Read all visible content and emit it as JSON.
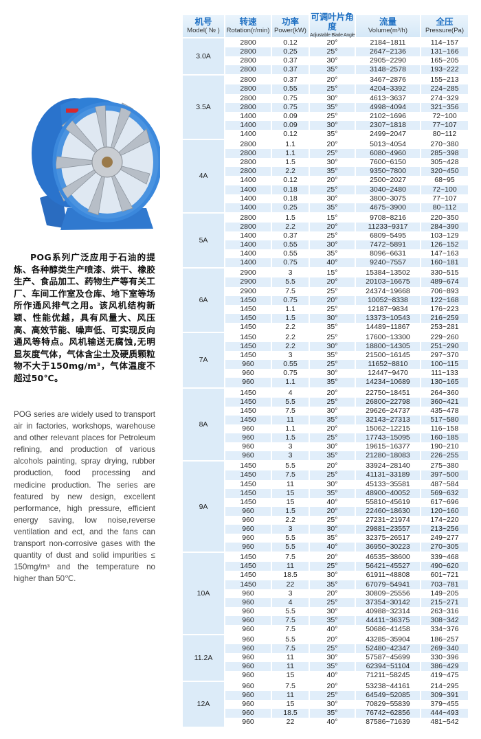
{
  "description_cn": {
    "text": "POG系列广泛应用于石油的提炼、各种醇类生产喷漆、烘干、橡胶生产、食品加工、药物生产等有关工厂、车间工作室及仓库、地下室等场所作通风排气之用。该风机结构新颖、性能优越，具有风量大、风压高、高效节能、噪声低、可实现反向通风等特点。风机输送无腐蚀,无明显灰度气体，气体含尘土及硬质颗粒物不大于150mg/m³，气体温度不超过50℃。"
  },
  "description_en": {
    "text": "POG series are widely used to transport air in factories, workshops, warehouse and other relevant places for Petroleum refining, and production of various alcohols painting, spray drying, rubber production, food processing and medicine production. The series are featured by new design, excellent performance, high pressure, efficient energy saving, low noise,reverse ventilation and ect, and the fans can transport non-corrosive gases with the quantity of dust and solid impurities ≤ 150mg/m³ and the temperature no higher than 50℃."
  },
  "product_image": {
    "icon": "axial-fan-photo",
    "colors": {
      "housing": "#2f7fd6",
      "blades": "#b9c0c8"
    }
  },
  "table": {
    "headers": [
      {
        "zh": "机号",
        "en": "Model( № )"
      },
      {
        "zh": "转速",
        "en": "Rotation(r/min)"
      },
      {
        "zh": "功率",
        "en": "Power(kW)"
      },
      {
        "zh": "可调叶片角度",
        "en": "Adjustable Blade Angle"
      },
      {
        "zh": "流量",
        "en": "Volume(m³/h)"
      },
      {
        "zh": "全压",
        "en": "Pressure(Pa)"
      }
    ],
    "colors": {
      "header_text": "#1e6fc2",
      "row_alt": "#e1eefa",
      "model_bg": "#dcebf8"
    },
    "groups": [
      {
        "model": "3.0A",
        "rows": [
          [
            "2800",
            "0.12",
            "20°",
            "2184~1811",
            "114~157"
          ],
          [
            "2800",
            "0.25",
            "25°",
            "2647~2136",
            "131~166"
          ],
          [
            "2800",
            "0.37",
            "30°",
            "2905~2290",
            "165~205"
          ],
          [
            "2800",
            "0.37",
            "35°",
            "3148~2578",
            "193~222"
          ]
        ]
      },
      {
        "model": "3.5A",
        "rows": [
          [
            "2800",
            "0.37",
            "20°",
            "3467~2876",
            "155~213"
          ],
          [
            "2800",
            "0.55",
            "25°",
            "4204~3392",
            "224~285"
          ],
          [
            "2800",
            "0.75",
            "30°",
            "4613~3637",
            "274~329"
          ],
          [
            "2800",
            "0.75",
            "35°",
            "4998~4094",
            "321~356"
          ],
          [
            "1400",
            "0.09",
            "25°",
            "2102~1696",
            "72~100"
          ],
          [
            "1400",
            "0.09",
            "30°",
            "2307~1818",
            "77~107"
          ],
          [
            "1400",
            "0.12",
            "35°",
            "2499~2047",
            "80~112"
          ]
        ]
      },
      {
        "model": "4A",
        "rows": [
          [
            "2800",
            "1.1",
            "20°",
            "5013~4054",
            "270~380"
          ],
          [
            "2800",
            "1.1",
            "25°",
            "6080~4960",
            "285~398"
          ],
          [
            "2800",
            "1.5",
            "30°",
            "7600~6150",
            "305~428"
          ],
          [
            "2800",
            "2.2",
            "35°",
            "9350~7800",
            "320~450"
          ],
          [
            "1400",
            "0.12",
            "20°",
            "2500~2027",
            "68~95"
          ],
          [
            "1400",
            "0.18",
            "25°",
            "3040~2480",
            "72~100"
          ],
          [
            "1400",
            "0.18",
            "30°",
            "3800~3075",
            "77~107"
          ],
          [
            "1400",
            "0.25",
            "35°",
            "4675~3900",
            "80~112"
          ]
        ]
      },
      {
        "model": "5A",
        "rows": [
          [
            "2800",
            "1.5",
            "15°",
            "9708~8216",
            "220~350"
          ],
          [
            "2800",
            "2.2",
            "20°",
            "11233~9317",
            "284~390"
          ],
          [
            "1400",
            "0.37",
            "25°",
            "6809~5495",
            "103~129"
          ],
          [
            "1400",
            "0.55",
            "30°",
            "7472~5891",
            "126~152"
          ],
          [
            "1400",
            "0.55",
            "35°",
            "8096~6631",
            "147~163"
          ],
          [
            "1400",
            "0.75",
            "40°",
            "9240~7557",
            "160~181"
          ]
        ]
      },
      {
        "model": "6A",
        "rows": [
          [
            "2900",
            "3",
            "15°",
            "15384~13502",
            "330~515"
          ],
          [
            "2900",
            "5.5",
            "20°",
            "20103~16675",
            "489~674"
          ],
          [
            "2900",
            "7.5",
            "25°",
            "24374~19668",
            "706~893"
          ],
          [
            "1450",
            "0.75",
            "20°",
            "10052~8338",
            "122~168"
          ],
          [
            "1450",
            "1.1",
            "25°",
            "12187~9834",
            "176~223"
          ],
          [
            "1450",
            "1.5",
            "30°",
            "13373~10543",
            "216~259"
          ],
          [
            "1450",
            "2.2",
            "35°",
            "14489~11867",
            "253~281"
          ]
        ]
      },
      {
        "model": "7A",
        "rows": [
          [
            "1450",
            "2.2",
            "25°",
            "17600~13300",
            "229~260"
          ],
          [
            "1450",
            "2.2",
            "30°",
            "18800~14305",
            "251~290"
          ],
          [
            "1450",
            "3",
            "35°",
            "21500~16145",
            "297~370"
          ],
          [
            "960",
            "0.55",
            "25°",
            "11652~8810",
            "100~115"
          ],
          [
            "960",
            "0.75",
            "30°",
            "12447~9470",
            "111~133"
          ],
          [
            "960",
            "1.1",
            "35°",
            "14234~10689",
            "130~165"
          ]
        ]
      },
      {
        "model": "8A",
        "rows": [
          [
            "1450",
            "4",
            "20°",
            "22750~18451",
            "264~360"
          ],
          [
            "1450",
            "5.5",
            "25°",
            "26800~22798",
            "360~421"
          ],
          [
            "1450",
            "7.5",
            "30°",
            "29626~24737",
            "435~478"
          ],
          [
            "1450",
            "11",
            "35°",
            "32143~27313",
            "517~580"
          ],
          [
            "960",
            "1.1",
            "20°",
            "15062~12215",
            "116~158"
          ],
          [
            "960",
            "1.5",
            "25°",
            "17743~15095",
            "160~185"
          ],
          [
            "960",
            "3",
            "30°",
            "19615~16377",
            "190~210"
          ],
          [
            "960",
            "3",
            "35°",
            "21280~18083",
            "226~255"
          ]
        ]
      },
      {
        "model": "9A",
        "rows": [
          [
            "1450",
            "5.5",
            "20°",
            "33924~28140",
            "275~380"
          ],
          [
            "1450",
            "7.5",
            "25°",
            "41131~33189",
            "397~500"
          ],
          [
            "1450",
            "11",
            "30°",
            "45133~35581",
            "487~584"
          ],
          [
            "1450",
            "15",
            "35°",
            "48900~40052",
            "569~632"
          ],
          [
            "1450",
            "15",
            "40°",
            "55810~45619",
            "617~696"
          ],
          [
            "960",
            "1.5",
            "20°",
            "22460~18630",
            "120~160"
          ],
          [
            "960",
            "2.2",
            "25°",
            "27231~21974",
            "174~220"
          ],
          [
            "960",
            "3",
            "30°",
            "29881~23557",
            "213~256"
          ],
          [
            "960",
            "5.5",
            "35°",
            "32375~26517",
            "249~277"
          ],
          [
            "960",
            "5.5",
            "40°",
            "36950~30223",
            "270~305"
          ]
        ]
      },
      {
        "model": "10A",
        "rows": [
          [
            "1450",
            "7.5",
            "20°",
            "46535~38600",
            "339~468"
          ],
          [
            "1450",
            "11",
            "25°",
            "56421~45527",
            "490~620"
          ],
          [
            "1450",
            "18.5",
            "30°",
            "61911~48808",
            "601~721"
          ],
          [
            "1450",
            "22",
            "35°",
            "67079~54941",
            "703~781"
          ],
          [
            "960",
            "3",
            "20°",
            "30809~25556",
            "149~205"
          ],
          [
            "960",
            "4",
            "25°",
            "37354~30142",
            "215~271"
          ],
          [
            "960",
            "5.5",
            "30°",
            "40988~32314",
            "263~316"
          ],
          [
            "960",
            "7.5",
            "35°",
            "44411~36375",
            "308~342"
          ],
          [
            "960",
            "7.5",
            "40°",
            "50686~41458",
            "334~376"
          ]
        ]
      },
      {
        "model": "11.2A",
        "rows": [
          [
            "960",
            "5.5",
            "20°",
            "43285~35904",
            "186~257"
          ],
          [
            "960",
            "7.5",
            "25°",
            "52480~42347",
            "269~340"
          ],
          [
            "960",
            "11",
            "30°",
            "57587~45699",
            "330~396"
          ],
          [
            "960",
            "11",
            "35°",
            "62394~51104",
            "386~429"
          ],
          [
            "960",
            "15",
            "40°",
            "71211~58245",
            "419~475"
          ]
        ]
      },
      {
        "model": "12A",
        "rows": [
          [
            "960",
            "7.5",
            "20°",
            "53238~44161",
            "214~295"
          ],
          [
            "960",
            "11",
            "25°",
            "64549~52085",
            "309~391"
          ],
          [
            "960",
            "15",
            "30°",
            "70829~55839",
            "379~455"
          ],
          [
            "960",
            "18.5",
            "35°",
            "76742~62856",
            "444~493"
          ],
          [
            "960",
            "22",
            "40°",
            "87586~71639",
            "481~542"
          ]
        ]
      }
    ]
  }
}
